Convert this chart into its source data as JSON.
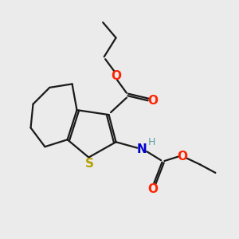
{
  "background_color": "#ebebeb",
  "bond_color": "#1a1a1a",
  "S_color": "#b5a000",
  "N_color": "#0000cc",
  "O_color": "#ff2200",
  "H_color": "#5f9ea0",
  "figsize": [
    3.0,
    3.0
  ],
  "dpi": 100,
  "xlim": [
    0,
    10
  ],
  "ylim": [
    0,
    10
  ]
}
